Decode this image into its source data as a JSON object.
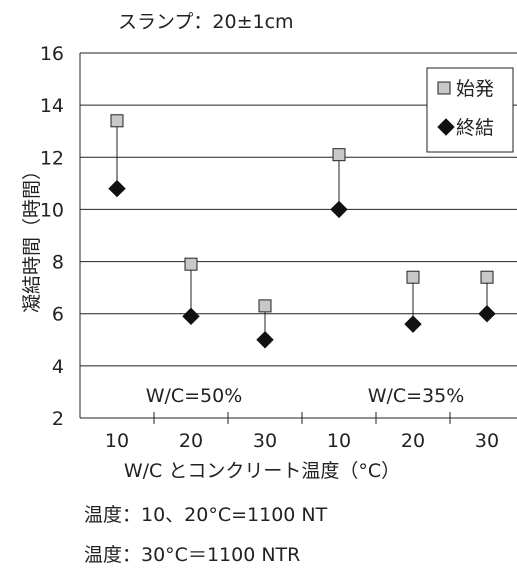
{
  "chart_data": {
    "type": "scatter",
    "title": "スランプ：20±1cm",
    "ylabel": "凝結時間（時間）",
    "xlabel": "W/C とコンクリート温度（°C）",
    "ylim": [
      2,
      16
    ],
    "yticks": [
      2,
      4,
      6,
      8,
      10,
      12,
      14,
      16
    ],
    "grid": "horizontal",
    "legend_position": "top-right",
    "categories": [
      "10",
      "20",
      "30",
      "10",
      "20",
      "30"
    ],
    "groups": [
      {
        "label": "W/C=50%",
        "categories": [
          "10",
          "20",
          "30"
        ]
      },
      {
        "label": "W/C=35%",
        "categories": [
          "10",
          "20",
          "30"
        ]
      }
    ],
    "series": [
      {
        "name": "始発",
        "marker": "square",
        "color": "#c8c8c8",
        "values": [
          13.4,
          7.9,
          6.3,
          12.1,
          7.4,
          7.4
        ]
      },
      {
        "name": "終結",
        "marker": "diamond",
        "color": "#111111",
        "values": [
          10.8,
          5.9,
          5.0,
          10.0,
          5.6,
          6.0
        ]
      }
    ]
  },
  "footnotes": [
    "温度：10、20°C=1100 NT",
    "温度：30°C＝1100 NTR"
  ]
}
